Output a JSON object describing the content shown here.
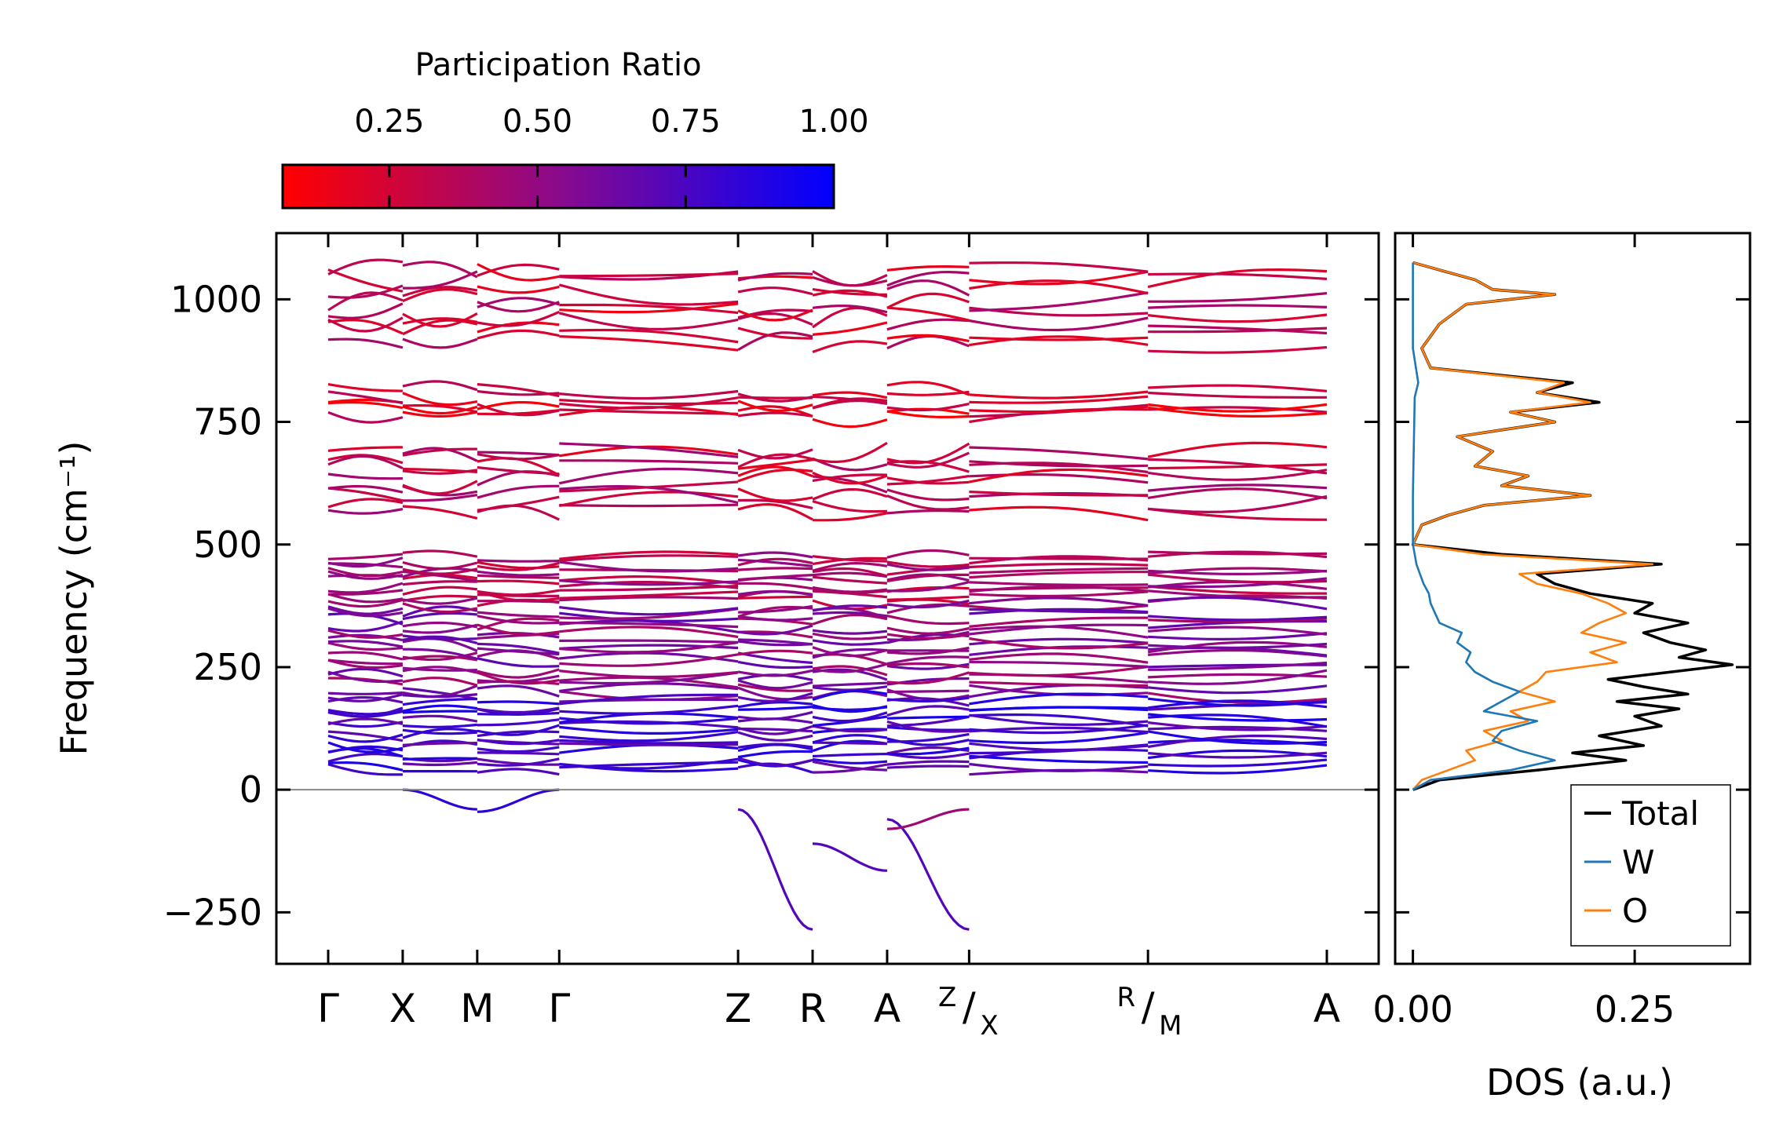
{
  "chart_data": [
    {
      "type": "line",
      "name": "phonon-band-structure",
      "ylabel": "Frequency (cm⁻¹)",
      "ylim": [
        -355,
        1135
      ],
      "yticks": [
        -250,
        0,
        250,
        500,
        750,
        1000
      ],
      "ytick_labels": [
        "−250",
        "0",
        "250",
        "500",
        "750",
        "1000"
      ],
      "zero_line": true,
      "kpath": [
        {
          "label": "Γ",
          "pos": 0.0
        },
        {
          "label": "X",
          "pos": 1.0
        },
        {
          "label": "M",
          "pos": 2.0
        },
        {
          "label": "Γ",
          "pos": 3.1
        },
        {
          "label": "Z",
          "pos": 5.5
        },
        {
          "label": "R",
          "pos": 6.5
        },
        {
          "label": "A",
          "pos": 7.5
        },
        {
          "label": "Z",
          "label2": "X",
          "pos": 8.6
        },
        {
          "label": "R",
          "label2": "M",
          "pos": 11.0
        },
        {
          "label": "A",
          "pos": 13.4
        }
      ],
      "colorbar": {
        "title": "Participation Ratio",
        "range": [
          0.07,
          1.0
        ],
        "ticks": [
          0.25,
          0.5,
          0.75,
          1.0
        ],
        "tick_labels": [
          "0.25",
          "0.50",
          "0.75",
          "1.00"
        ],
        "color_low": "#ff0000",
        "color_mid": "#8a0a8c",
        "color_high": "#0000ff"
      },
      "band_groups": [
        {
          "range": [
            900,
            1070
          ],
          "count": 8,
          "pr": 0.28
        },
        {
          "range": [
            755,
            820
          ],
          "count": 5,
          "pr": 0.22
        },
        {
          "range": [
            560,
            700
          ],
          "count": 8,
          "pr": 0.32
        },
        {
          "range": [
            380,
            480
          ],
          "count": 10,
          "pr": 0.4
        },
        {
          "range": [
            190,
            380
          ],
          "count": 16,
          "pr": 0.55
        },
        {
          "range": [
            35,
            190
          ],
          "count": 14,
          "pr": 0.78
        }
      ],
      "imaginary_modes": [
        {
          "segment": [
            4,
            5
          ],
          "from": -40,
          "to": -285,
          "pr": 0.72
        },
        {
          "segment": [
            5,
            6
          ],
          "from": -110,
          "to": -165,
          "pr": 0.72
        },
        {
          "segment": [
            6,
            7
          ],
          "from": -60,
          "to": -285,
          "pr": 0.72
        },
        {
          "segment": [
            6,
            7
          ],
          "from": -80,
          "to": -40,
          "pr": 0.45
        },
        {
          "segment": [
            1,
            2
          ],
          "from": 0,
          "to": -40,
          "pr": 0.85
        },
        {
          "segment": [
            2,
            3
          ],
          "from": -45,
          "to": 0,
          "pr": 0.85
        }
      ]
    },
    {
      "type": "line",
      "name": "density-of-states",
      "xlabel": "DOS (a.u.)",
      "xlim": [
        -0.02,
        0.38
      ],
      "xticks": [
        0.0,
        0.25
      ],
      "xtick_labels": [
        "0.00",
        "0.25"
      ],
      "ylim": [
        -355,
        1135
      ],
      "series": [
        {
          "name": "Total",
          "color": "#000000",
          "freq": [
            0,
            20,
            40,
            60,
            75,
            90,
            110,
            130,
            150,
            165,
            180,
            195,
            210,
            225,
            240,
            255,
            270,
            285,
            300,
            320,
            340,
            360,
            380,
            400,
            420,
            440,
            460,
            480,
            500,
            540,
            560,
            580,
            600,
            620,
            640,
            660,
            690,
            720,
            750,
            770,
            790,
            810,
            830,
            860,
            900,
            950,
            990,
            1010,
            1020,
            1040,
            1060,
            1075
          ],
          "dos": [
            0.0,
            0.03,
            0.14,
            0.24,
            0.18,
            0.26,
            0.21,
            0.28,
            0.25,
            0.3,
            0.23,
            0.31,
            0.26,
            0.22,
            0.29,
            0.36,
            0.3,
            0.33,
            0.29,
            0.26,
            0.31,
            0.25,
            0.27,
            0.2,
            0.16,
            0.14,
            0.28,
            0.1,
            0.0,
            0.01,
            0.04,
            0.08,
            0.2,
            0.1,
            0.13,
            0.07,
            0.09,
            0.05,
            0.16,
            0.11,
            0.21,
            0.14,
            0.18,
            0.02,
            0.01,
            0.03,
            0.06,
            0.16,
            0.09,
            0.07,
            0.03,
            0.0
          ]
        },
        {
          "name": "W",
          "color": "#1f77b4",
          "freq": [
            0,
            20,
            40,
            60,
            80,
            100,
            120,
            140,
            160,
            180,
            200,
            220,
            240,
            260,
            280,
            300,
            320,
            340,
            360,
            380,
            400,
            420,
            440,
            460,
            480,
            500,
            600,
            800,
            830,
            900,
            1075
          ],
          "dos": [
            0.0,
            0.02,
            0.11,
            0.16,
            0.12,
            0.09,
            0.1,
            0.14,
            0.08,
            0.1,
            0.12,
            0.09,
            0.07,
            0.06,
            0.065,
            0.05,
            0.055,
            0.03,
            0.025,
            0.02,
            0.018,
            0.012,
            0.008,
            0.004,
            0.002,
            0.0,
            0.0,
            0.002,
            0.006,
            0.0,
            0.0
          ]
        },
        {
          "name": "O",
          "color": "#ff7f0e",
          "freq": [
            0,
            20,
            40,
            60,
            80,
            100,
            120,
            140,
            160,
            180,
            200,
            220,
            240,
            260,
            280,
            300,
            320,
            340,
            360,
            380,
            400,
            420,
            440,
            460,
            480,
            500,
            540,
            560,
            580,
            600,
            620,
            640,
            660,
            690,
            720,
            750,
            770,
            790,
            810,
            830,
            860,
            900,
            950,
            990,
            1010,
            1020,
            1040,
            1060,
            1075
          ],
          "dos": [
            0.0,
            0.01,
            0.04,
            0.07,
            0.06,
            0.1,
            0.08,
            0.13,
            0.11,
            0.16,
            0.12,
            0.14,
            0.15,
            0.23,
            0.2,
            0.24,
            0.19,
            0.21,
            0.24,
            0.22,
            0.19,
            0.14,
            0.12,
            0.27,
            0.08,
            0.0,
            0.01,
            0.04,
            0.08,
            0.2,
            0.1,
            0.13,
            0.07,
            0.09,
            0.05,
            0.16,
            0.11,
            0.2,
            0.14,
            0.17,
            0.02,
            0.01,
            0.03,
            0.06,
            0.16,
            0.09,
            0.07,
            0.03,
            0.0
          ]
        }
      ],
      "legend": {
        "location": "lower-right",
        "entries": [
          "Total",
          "W",
          "O"
        ]
      }
    }
  ]
}
